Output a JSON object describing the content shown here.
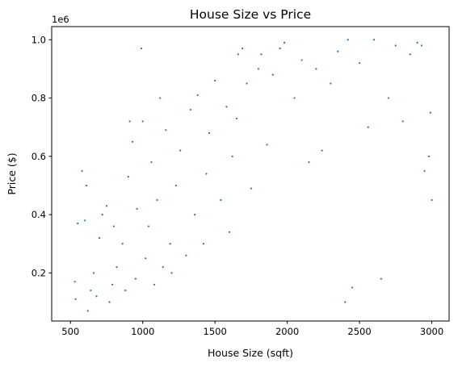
{
  "chart_data": {
    "type": "scatter",
    "title": "House Size vs Price",
    "xlabel": "House Size (sqft)",
    "ylabel": "Price ($)",
    "y_offset_label": "1e6",
    "xlim": [
      370,
      3120
    ],
    "ylim": [
      0.035,
      1.045
    ],
    "x_ticks": [
      500,
      1000,
      1500,
      2000,
      2500,
      3000
    ],
    "x_tick_labels": [
      "500",
      "1000",
      "1500",
      "2000",
      "2500",
      "3000"
    ],
    "y_ticks": [
      0.2,
      0.4,
      0.6,
      0.8,
      1.0
    ],
    "y_tick_labels": [
      "0.2",
      "0.4",
      "0.6",
      "0.8",
      "1.0"
    ],
    "y_unit_multiplier": 1000000,
    "grid": false,
    "legend": "none",
    "marker_color": "#1f77b4",
    "x_range_approx": [
      500,
      3000
    ],
    "y_range_approx": [
      0.07,
      1.0
    ],
    "series": [
      {
        "points": [
          [
            530,
            0.17
          ],
          [
            535,
            0.11
          ],
          [
            550,
            0.37
          ],
          [
            580,
            0.55
          ],
          [
            600,
            0.38
          ],
          [
            610,
            0.5
          ],
          [
            620,
            0.07
          ],
          [
            640,
            0.14
          ],
          [
            660,
            0.2
          ],
          [
            680,
            0.12
          ],
          [
            700,
            0.32
          ],
          [
            720,
            0.4
          ],
          [
            750,
            0.43
          ],
          [
            770,
            0.1
          ],
          [
            790,
            0.16
          ],
          [
            800,
            0.36
          ],
          [
            820,
            0.22
          ],
          [
            860,
            0.3
          ],
          [
            880,
            0.14
          ],
          [
            900,
            0.53
          ],
          [
            910,
            0.72
          ],
          [
            930,
            0.65
          ],
          [
            950,
            0.18
          ],
          [
            960,
            0.42
          ],
          [
            990,
            0.97
          ],
          [
            1000,
            0.72
          ],
          [
            1020,
            0.25
          ],
          [
            1040,
            0.36
          ],
          [
            1060,
            0.58
          ],
          [
            1080,
            0.16
          ],
          [
            1100,
            0.45
          ],
          [
            1120,
            0.8
          ],
          [
            1140,
            0.22
          ],
          [
            1160,
            0.69
          ],
          [
            1190,
            0.3
          ],
          [
            1200,
            0.2
          ],
          [
            1230,
            0.5
          ],
          [
            1260,
            0.62
          ],
          [
            1300,
            0.26
          ],
          [
            1330,
            0.76
          ],
          [
            1360,
            0.4
          ],
          [
            1380,
            0.81
          ],
          [
            1420,
            0.3
          ],
          [
            1440,
            0.54
          ],
          [
            1460,
            0.68
          ],
          [
            1500,
            0.86
          ],
          [
            1540,
            0.45
          ],
          [
            1580,
            0.77
          ],
          [
            1600,
            0.34
          ],
          [
            1620,
            0.6
          ],
          [
            1650,
            0.73
          ],
          [
            1660,
            0.95
          ],
          [
            1690,
            0.97
          ],
          [
            1720,
            0.85
          ],
          [
            1750,
            0.49
          ],
          [
            1800,
            0.9
          ],
          [
            1820,
            0.95
          ],
          [
            1860,
            0.64
          ],
          [
            1900,
            0.88
          ],
          [
            1950,
            0.97
          ],
          [
            1980,
            0.99
          ],
          [
            2050,
            0.8
          ],
          [
            2100,
            0.93
          ],
          [
            2150,
            0.58
          ],
          [
            2200,
            0.9
          ],
          [
            2240,
            0.62
          ],
          [
            2300,
            0.85
          ],
          [
            2350,
            0.96
          ],
          [
            2400,
            0.1
          ],
          [
            2420,
            1.0
          ],
          [
            2450,
            0.15
          ],
          [
            2500,
            0.92
          ],
          [
            2560,
            0.7
          ],
          [
            2600,
            1.0
          ],
          [
            2650,
            0.18
          ],
          [
            2700,
            0.8
          ],
          [
            2750,
            0.98
          ],
          [
            2800,
            0.72
          ],
          [
            2850,
            0.95
          ],
          [
            2900,
            0.99
          ],
          [
            2930,
            0.98
          ],
          [
            2950,
            0.55
          ],
          [
            2980,
            0.6
          ],
          [
            2990,
            0.75
          ],
          [
            3000,
            0.45
          ]
        ]
      }
    ]
  }
}
